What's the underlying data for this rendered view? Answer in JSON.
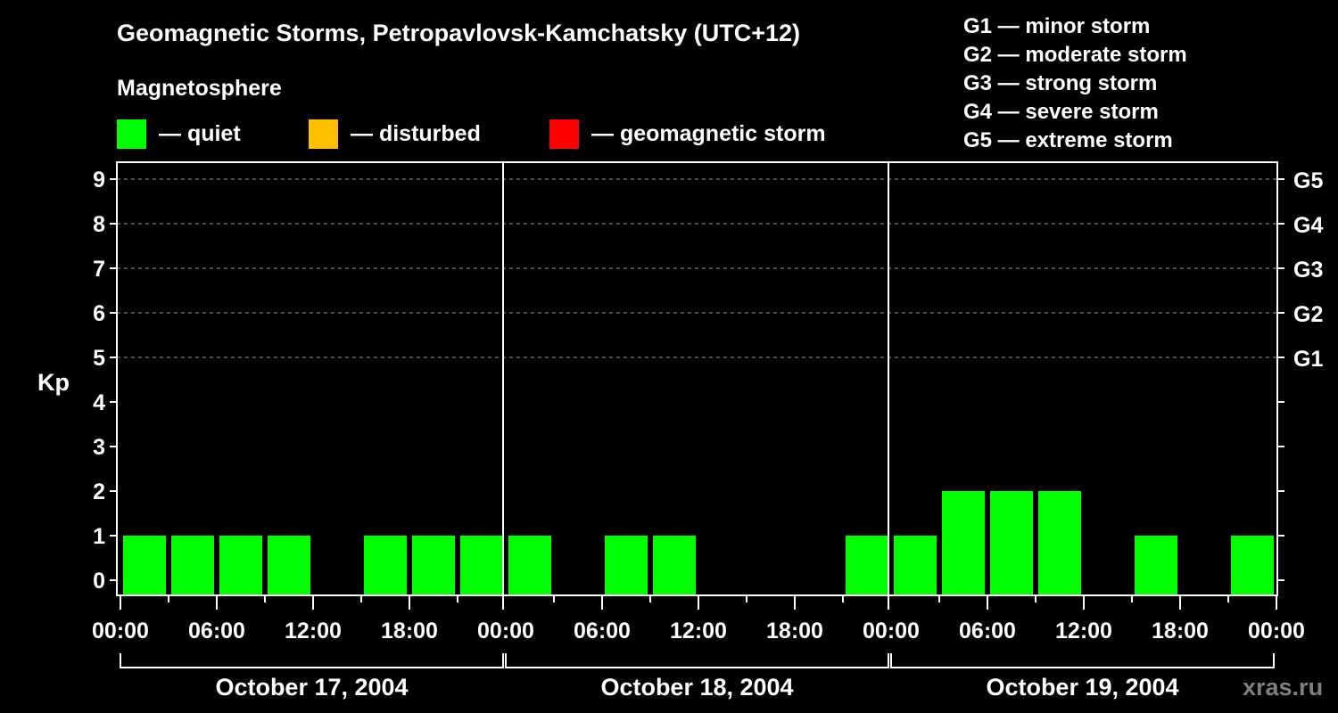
{
  "header": {
    "title": "Geomagnetic Storms, Petropavlovsk-Kamchatsky (UTC+12)",
    "magnetosphere_label": "Magnetosphere",
    "legend": [
      {
        "label": "— quiet",
        "color": "#00ff00"
      },
      {
        "label": "— disturbed",
        "color": "#ffbf00"
      },
      {
        "label": "— geomagnetic storm",
        "color": "#ff0000"
      }
    ]
  },
  "g_scale": [
    "G1 — minor storm",
    "G2 — moderate storm",
    "G3 — strong storm",
    "G4 — severe storm",
    "G5 — extreme storm"
  ],
  "watermark": "xras.ru",
  "chart_data": {
    "type": "bar",
    "title": "Geomagnetic Storms, Petropavlovsk-Kamchatsky (UTC+12)",
    "xlabel": "",
    "ylabel": "Kp",
    "ylim": [
      0,
      9
    ],
    "yticks": [
      0,
      1,
      2,
      3,
      4,
      5,
      6,
      7,
      8,
      9
    ],
    "right_axis_labels": [
      {
        "kp": 5,
        "label": "G1"
      },
      {
        "kp": 6,
        "label": "G2"
      },
      {
        "kp": 7,
        "label": "G3"
      },
      {
        "kp": 8,
        "label": "G4"
      },
      {
        "kp": 9,
        "label": "G5"
      }
    ],
    "grid": "dashed horizontal at Kp 5-9",
    "xtick_labels": [
      "00:00",
      "06:00",
      "12:00",
      "18:00",
      "00:00",
      "06:00",
      "12:00",
      "18:00",
      "00:00",
      "06:00",
      "12:00",
      "18:00",
      "00:00"
    ],
    "days": [
      "October 17, 2004",
      "October 18, 2004",
      "October 19, 2004"
    ],
    "interval_hours": 3,
    "categories": [
      "Oct17 00-03",
      "Oct17 03-06",
      "Oct17 06-09",
      "Oct17 09-12",
      "Oct17 12-15",
      "Oct17 15-18",
      "Oct17 18-21",
      "Oct17 21-24",
      "Oct18 00-03",
      "Oct18 03-06",
      "Oct18 06-09",
      "Oct18 09-12",
      "Oct18 12-15",
      "Oct18 15-18",
      "Oct18 18-21",
      "Oct18 21-24",
      "Oct19 00-03",
      "Oct19 03-06",
      "Oct19 06-09",
      "Oct19 09-12",
      "Oct19 12-15",
      "Oct19 15-18",
      "Oct19 18-21",
      "Oct19 21-24"
    ],
    "series": [
      {
        "name": "Kp",
        "values": [
          1,
          1,
          1,
          1,
          0,
          1,
          1,
          1,
          1,
          0,
          1,
          1,
          0,
          0,
          0,
          1,
          1,
          2,
          2,
          2,
          0,
          1,
          0,
          1
        ]
      }
    ],
    "bar_color_by_status": {
      "quiet": "#00ff00",
      "disturbed": "#ffbf00",
      "storm": "#ff0000"
    }
  }
}
